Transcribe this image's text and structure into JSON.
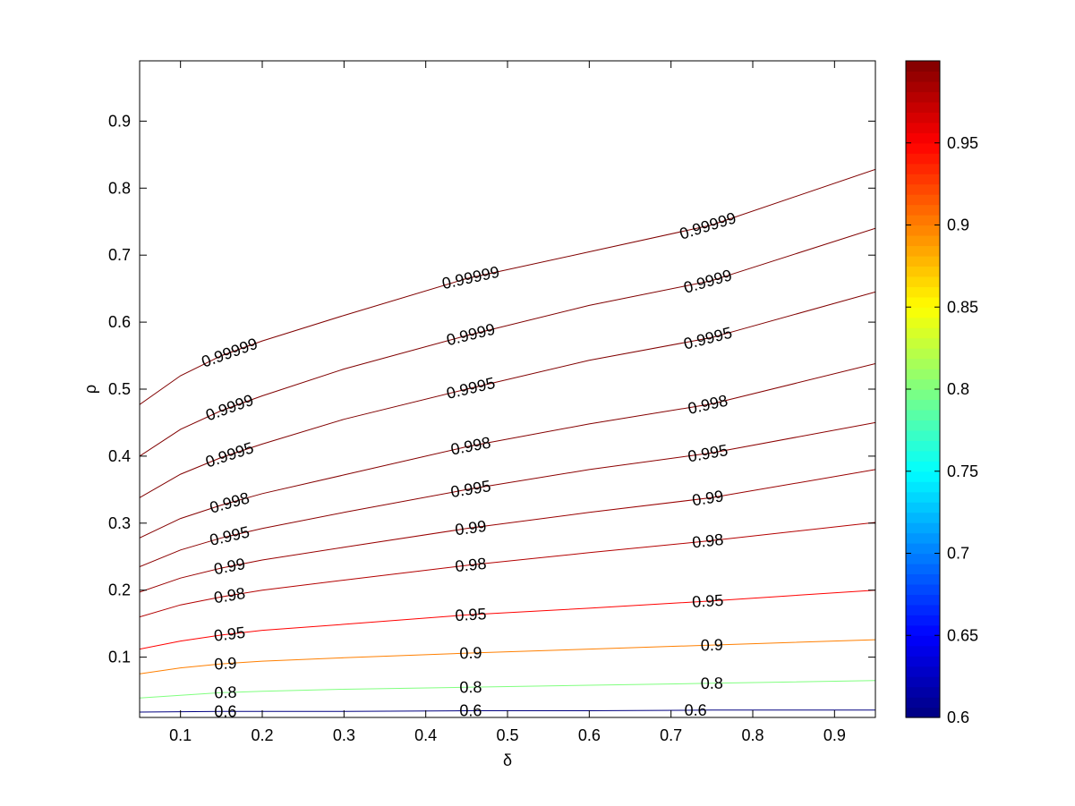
{
  "chart_data": {
    "type": "contour",
    "xlabel": "δ",
    "ylabel": "ρ",
    "xlim": [
      0.05,
      0.95
    ],
    "ylim": [
      0.01,
      0.99
    ],
    "xticks": [
      "0.1",
      "0.2",
      "0.3",
      "0.4",
      "0.5",
      "0.6",
      "0.7",
      "0.8",
      "0.9"
    ],
    "yticks": [
      "0.1",
      "0.2",
      "0.3",
      "0.4",
      "0.5",
      "0.6",
      "0.7",
      "0.8",
      "0.9"
    ],
    "colorbar": {
      "range": [
        0.6,
        1.0
      ],
      "ticks": [
        "0.6",
        "0.65",
        "0.7",
        "0.75",
        "0.8",
        "0.85",
        "0.9",
        "0.95"
      ],
      "colormap": "jet"
    },
    "contours": [
      {
        "level": 0.6,
        "label": "0.6",
        "x": [
          0.05,
          0.15,
          0.3,
          0.45,
          0.6,
          0.75,
          0.95
        ],
        "y": [
          0.018,
          0.019,
          0.019,
          0.02,
          0.02,
          0.021,
          0.021
        ],
        "label_x": [
          0.155,
          0.455,
          0.73
        ]
      },
      {
        "level": 0.8,
        "label": "0.8",
        "x": [
          0.05,
          0.1,
          0.15,
          0.2,
          0.3,
          0.45,
          0.6,
          0.75,
          0.95
        ],
        "y": [
          0.039,
          0.043,
          0.047,
          0.049,
          0.052,
          0.055,
          0.058,
          0.061,
          0.065
        ],
        "label_x": [
          0.155,
          0.455,
          0.75
        ]
      },
      {
        "level": 0.9,
        "label": "0.9",
        "x": [
          0.05,
          0.1,
          0.15,
          0.2,
          0.3,
          0.45,
          0.6,
          0.75,
          0.95
        ],
        "y": [
          0.075,
          0.084,
          0.09,
          0.094,
          0.099,
          0.106,
          0.112,
          0.118,
          0.126
        ],
        "label_x": [
          0.155,
          0.455,
          0.75
        ]
      },
      {
        "level": 0.95,
        "label": "0.95",
        "x": [
          0.05,
          0.1,
          0.15,
          0.2,
          0.3,
          0.45,
          0.6,
          0.75,
          0.95
        ],
        "y": [
          0.112,
          0.124,
          0.133,
          0.14,
          0.149,
          0.163,
          0.173,
          0.184,
          0.2
        ],
        "label_x": [
          0.16,
          0.455,
          0.745
        ]
      },
      {
        "level": 0.98,
        "label": "0.98",
        "x": [
          0.05,
          0.1,
          0.15,
          0.2,
          0.3,
          0.45,
          0.6,
          0.75,
          0.95
        ],
        "y": [
          0.16,
          0.178,
          0.19,
          0.2,
          0.215,
          0.237,
          0.256,
          0.274,
          0.301
        ],
        "label_x": [
          0.16,
          0.455,
          0.745
        ]
      },
      {
        "level": 0.99,
        "label": "0.99",
        "x": [
          0.05,
          0.1,
          0.15,
          0.2,
          0.3,
          0.45,
          0.6,
          0.75,
          0.95
        ],
        "y": [
          0.197,
          0.218,
          0.233,
          0.245,
          0.264,
          0.292,
          0.316,
          0.338,
          0.38
        ],
        "label_x": [
          0.16,
          0.455,
          0.745
        ]
      },
      {
        "level": 0.995,
        "label": "0.995",
        "x": [
          0.05,
          0.1,
          0.15,
          0.2,
          0.3,
          0.45,
          0.6,
          0.75,
          0.95
        ],
        "y": [
          0.235,
          0.26,
          0.278,
          0.292,
          0.316,
          0.35,
          0.38,
          0.405,
          0.45
        ],
        "label_x": [
          0.16,
          0.455,
          0.745
        ]
      },
      {
        "level": 0.998,
        "label": "0.998",
        "x": [
          0.05,
          0.1,
          0.15,
          0.2,
          0.3,
          0.45,
          0.6,
          0.75,
          0.95
        ],
        "y": [
          0.278,
          0.307,
          0.327,
          0.344,
          0.372,
          0.414,
          0.448,
          0.478,
          0.538
        ],
        "label_x": [
          0.16,
          0.455,
          0.745
        ]
      },
      {
        "level": 0.9995,
        "label": "0.9995",
        "x": [
          0.05,
          0.1,
          0.15,
          0.2,
          0.3,
          0.45,
          0.6,
          0.75,
          0.95
        ],
        "y": [
          0.338,
          0.373,
          0.398,
          0.418,
          0.455,
          0.5,
          0.543,
          0.577,
          0.645
        ],
        "label_x": [
          0.16,
          0.455,
          0.745
        ]
      },
      {
        "level": 0.9999,
        "label": "0.9999",
        "x": [
          0.05,
          0.1,
          0.15,
          0.2,
          0.3,
          0.45,
          0.6,
          0.75,
          0.95
        ],
        "y": [
          0.4,
          0.44,
          0.468,
          0.49,
          0.53,
          0.58,
          0.625,
          0.662,
          0.74
        ],
        "label_x": [
          0.16,
          0.455,
          0.745
        ]
      },
      {
        "level": 0.99999,
        "label": "0.99999",
        "x": [
          0.05,
          0.1,
          0.15,
          0.2,
          0.3,
          0.45,
          0.6,
          0.75,
          0.95
        ],
        "y": [
          0.477,
          0.52,
          0.55,
          0.572,
          0.61,
          0.665,
          0.705,
          0.745,
          0.828
        ],
        "label_x": [
          0.16,
          0.455,
          0.745
        ]
      }
    ]
  }
}
